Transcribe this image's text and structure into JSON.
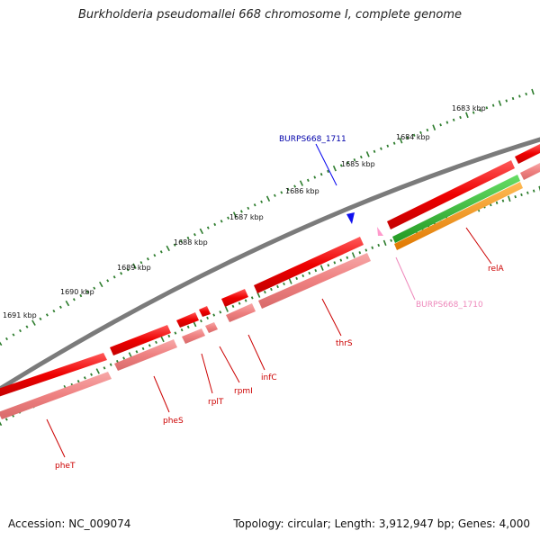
{
  "title": "Burkholderia pseudomallei 668 chromosome I, complete genome",
  "footer": {
    "accession": "Accession: NC_009074",
    "summary": "Topology: circular; Length: 3,912,947 bp; Genes: 4,000"
  },
  "colors": {
    "backbone": "#7b7b7b",
    "cds_forward": "#ee1111",
    "cds_reverse": "#f08585",
    "gene_green": "#33bb33",
    "gene_orange": "#ff9922",
    "tick": "#2e7d2e",
    "blue_feature": "#0000ee",
    "pink_feature": "#ff9acc",
    "label_red": "#cc0000",
    "label_blue": "#0000aa",
    "label_pink": "#ee88bb"
  },
  "ticks": [
    "1683 kbp",
    "1684 kbp",
    "1685 kbp",
    "1686 kbp",
    "1687 kbp",
    "1688 kbp",
    "1689 kbp",
    "1690 kbp",
    "1691 kbp"
  ],
  "genes": [
    {
      "name": "pheT",
      "color": "red"
    },
    {
      "name": "pheS",
      "color": "red"
    },
    {
      "name": "rplT",
      "color": "red"
    },
    {
      "name": "rpmI",
      "color": "red"
    },
    {
      "name": "infC",
      "color": "red"
    },
    {
      "name": "thrS",
      "color": "red"
    },
    {
      "name": "BURPS668_1711",
      "color": "blue"
    },
    {
      "name": "BURPS668_1710",
      "color": "pink"
    },
    {
      "name": "relA",
      "color": "red"
    }
  ]
}
